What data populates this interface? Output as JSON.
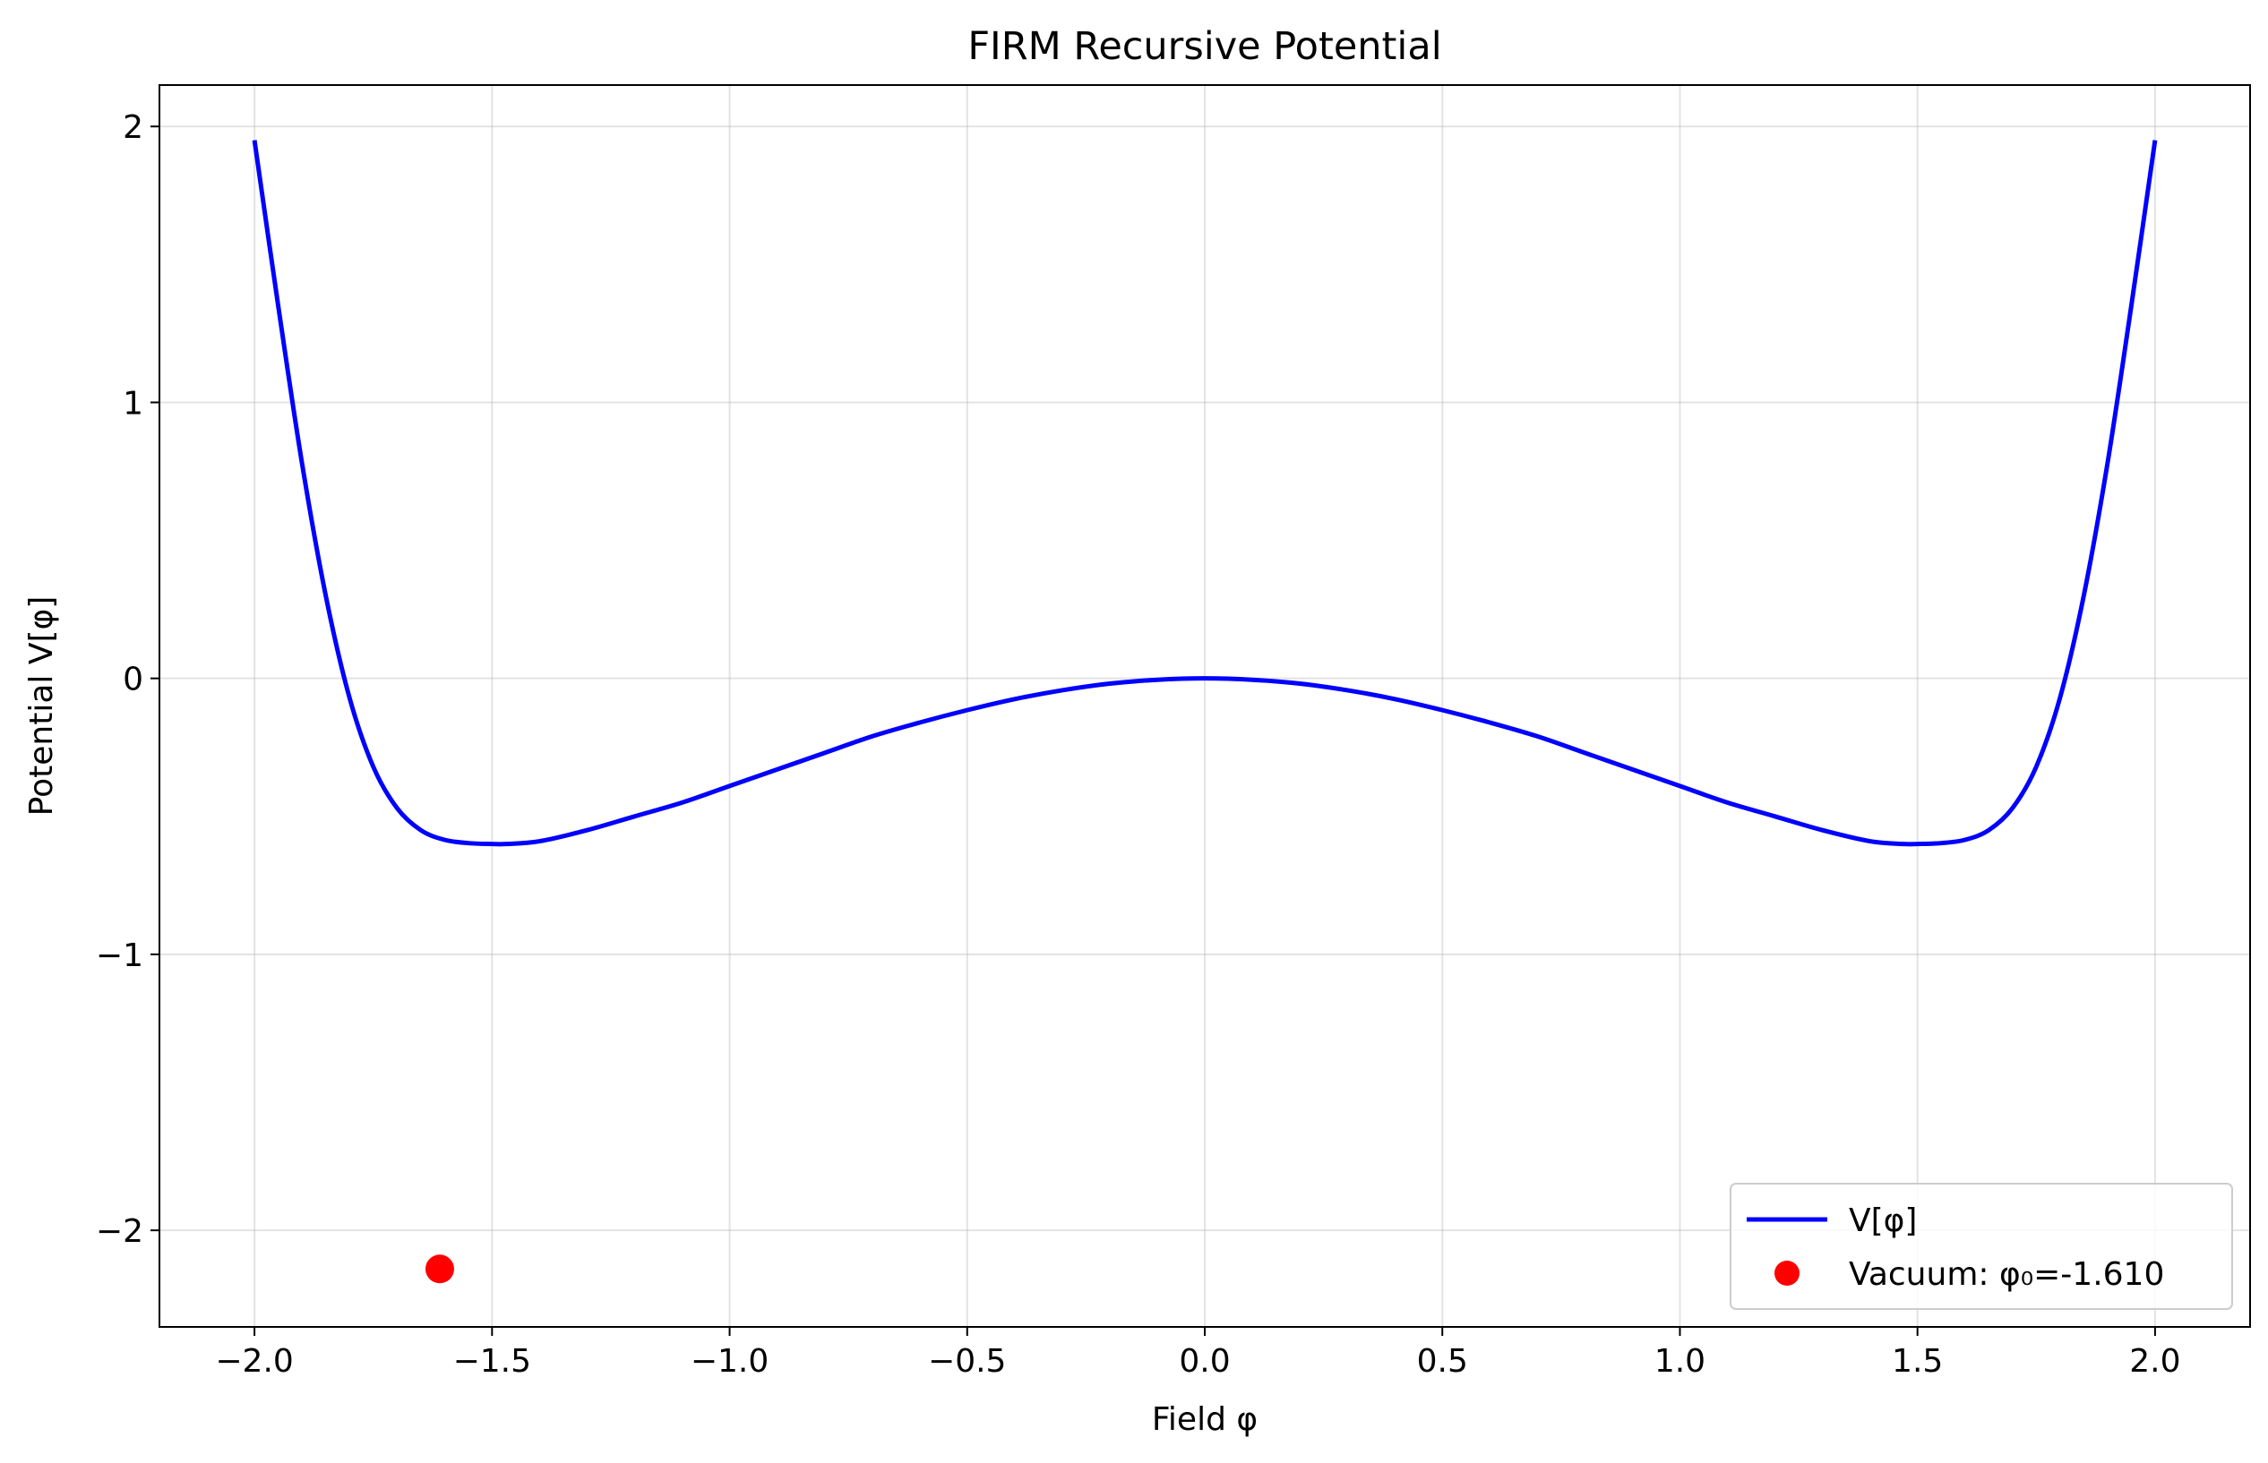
{
  "chart_data": {
    "type": "line",
    "title": "FIRM Recursive Potential",
    "xlabel": "Field φ",
    "ylabel": "Potential V[φ]",
    "xlim": [
      -2.2,
      2.2
    ],
    "ylim": [
      -2.35,
      2.15
    ],
    "x_ticks": [
      -2.0,
      -1.5,
      -1.0,
      -0.5,
      0.0,
      0.5,
      1.0,
      1.5,
      2.0
    ],
    "x_tick_labels": [
      "−2.0",
      "−1.5",
      "−1.0",
      "−0.5",
      "0.0",
      "0.5",
      "1.0",
      "1.5",
      "2.0"
    ],
    "y_ticks": [
      -2,
      -1,
      0,
      1,
      2
    ],
    "y_tick_labels": [
      "−2",
      "−1",
      "0",
      "1",
      "2"
    ],
    "grid": true,
    "legend_position": "lower right",
    "series": [
      {
        "name": "V[φ]",
        "kind": "line",
        "color": "#0000ff",
        "x": [
          -2.0,
          -1.95,
          -1.9,
          -1.85,
          -1.8,
          -1.75,
          -1.7,
          -1.65,
          -1.6,
          -1.55,
          -1.5,
          -1.47,
          -1.4,
          -1.3,
          -1.2,
          -1.1,
          -1.0,
          -0.9,
          -0.8,
          -0.7,
          -0.6,
          -0.5,
          -0.4,
          -0.3,
          -0.2,
          -0.1,
          0.0,
          0.1,
          0.2,
          0.3,
          0.4,
          0.5,
          0.6,
          0.7,
          0.8,
          0.9,
          1.0,
          1.1,
          1.2,
          1.3,
          1.4,
          1.47,
          1.5,
          1.55,
          1.6,
          1.65,
          1.7,
          1.75,
          1.8,
          1.85,
          1.9,
          1.95,
          2.0
        ],
        "y": [
          1.95,
          1.35,
          0.78,
          0.3,
          -0.07,
          -0.32,
          -0.47,
          -0.55,
          -0.585,
          -0.597,
          -0.6,
          -0.6,
          -0.59,
          -0.55,
          -0.5,
          -0.45,
          -0.39,
          -0.33,
          -0.27,
          -0.21,
          -0.16,
          -0.115,
          -0.075,
          -0.043,
          -0.019,
          -0.005,
          0.0,
          -0.005,
          -0.019,
          -0.043,
          -0.075,
          -0.115,
          -0.16,
          -0.21,
          -0.27,
          -0.33,
          -0.39,
          -0.45,
          -0.5,
          -0.55,
          -0.59,
          -0.6,
          -0.6,
          -0.597,
          -0.585,
          -0.55,
          -0.47,
          -0.32,
          -0.07,
          0.3,
          0.78,
          1.35,
          1.95
        ]
      },
      {
        "name": "Vacuum: φ₀=-1.610",
        "kind": "marker",
        "color": "#ff0000",
        "x": [
          -1.61
        ],
        "y": [
          -2.14
        ]
      }
    ]
  }
}
